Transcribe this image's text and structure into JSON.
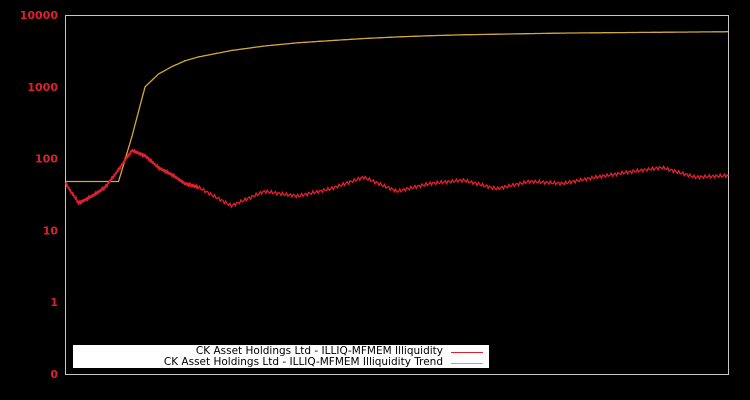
{
  "chart_data": {
    "type": "line",
    "title": "",
    "xlabel": "",
    "ylabel": "",
    "yscale": "log",
    "ylim": [
      0.1,
      10000
    ],
    "y_ticks": [
      "10000",
      "1000",
      "100",
      "10",
      "1",
      "0"
    ],
    "y_tick_values": [
      10000,
      1000,
      100,
      10,
      1,
      0.1
    ],
    "grid": false,
    "legend_position": "bottom-left",
    "background": "#000000",
    "axis_color": "#c8c8c8",
    "tick_color": "#e0202e",
    "x": [
      0,
      2,
      4,
      6,
      8,
      10,
      12,
      14,
      16,
      18,
      20,
      25,
      30,
      35,
      40,
      45,
      50,
      55,
      60,
      65,
      70,
      75,
      80,
      85,
      90,
      95,
      100
    ],
    "series": [
      {
        "name": "CK Asset Holdings Ltd - ILLIQ-MFMEM Illiquidity",
        "color": "#e0202e",
        "values": [
          45,
          24,
          30,
          40,
          70,
          130,
          110,
          75,
          60,
          45,
          40,
          22,
          35,
          30,
          38,
          55,
          35,
          45,
          50,
          38,
          48,
          45,
          55,
          65,
          75,
          55,
          58
        ]
      },
      {
        "name": "CK Asset Holdings Ltd - ILLIQ-MFMEM Illiquidity Trend",
        "color": "#d4a83a",
        "values": [
          48,
          48,
          48,
          48,
          48,
          200,
          1000,
          1500,
          1900,
          2300,
          2600,
          3200,
          3700,
          4100,
          4400,
          4700,
          4950,
          5150,
          5300,
          5400,
          5500,
          5600,
          5650,
          5700,
          5750,
          5800,
          5850
        ]
      }
    ]
  },
  "legend": {
    "items": [
      {
        "label": "CK Asset Holdings Ltd - ILLIQ-MFMEM Illiquidity",
        "color": "#e0202e"
      },
      {
        "label": "CK Asset Holdings Ltd - ILLIQ-MFMEM Illiquidity Trend",
        "color": "#d4a83a"
      }
    ]
  }
}
